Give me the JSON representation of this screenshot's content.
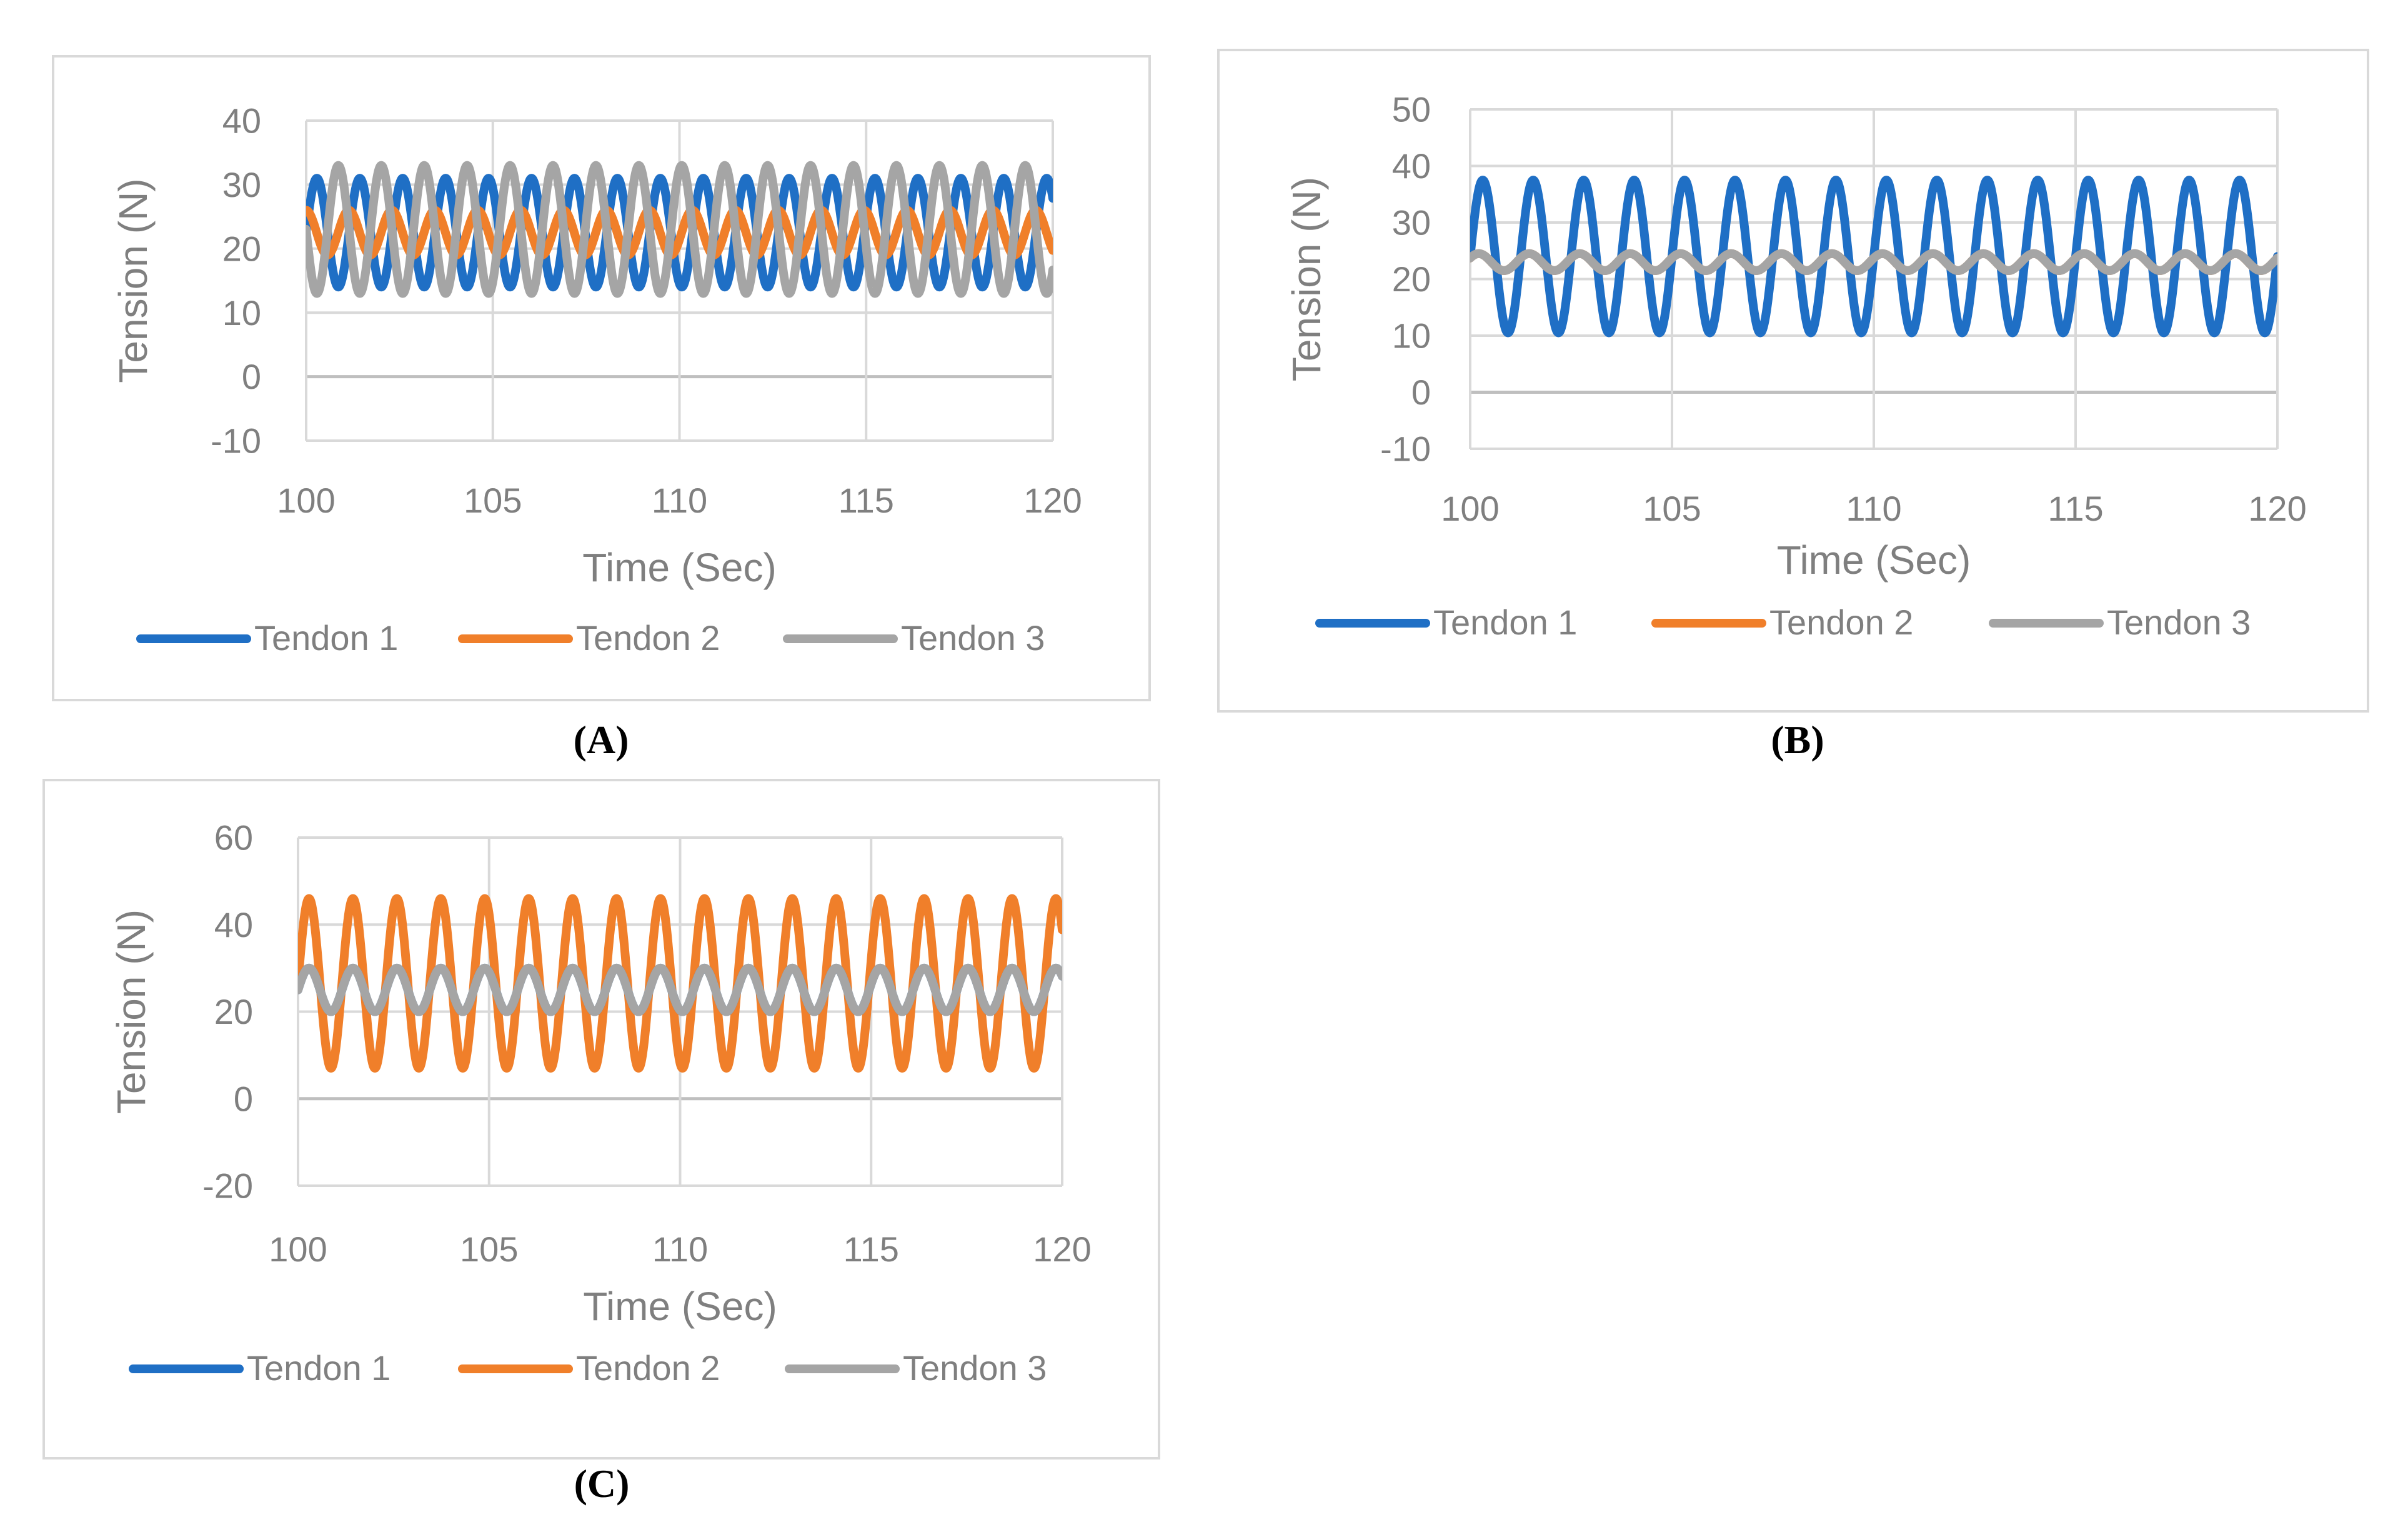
{
  "chart_data": [
    {
      "type": "line",
      "panel_label": "(A)",
      "xlabel": "Time (Sec)",
      "ylabel": "Tension (N)",
      "xlim": [
        100,
        120
      ],
      "ylim": [
        -10,
        40
      ],
      "xticks": [
        100,
        105,
        110,
        115,
        120
      ],
      "yticks": [
        -10,
        0,
        10,
        20,
        30,
        40
      ],
      "grid": true,
      "legend_position": "bottom",
      "period": 1.15,
      "series": [
        {
          "name": "Tendon 1",
          "color": "#1f6fc5",
          "mean": 22.5,
          "amplitude": 8.5,
          "phase": 0.0
        },
        {
          "name": "Tendon 2",
          "color": "#f07f2a",
          "mean": 22.5,
          "amplitude": 3.5,
          "phase": 1.6
        },
        {
          "name": "Tendon 3",
          "color": "#a5a5a5",
          "mean": 23.0,
          "amplitude": 10.0,
          "phase": 3.14
        }
      ]
    },
    {
      "type": "line",
      "panel_label": "(B)",
      "xlabel": "Time (Sec)",
      "ylabel": "Tension (N)",
      "xlim": [
        100,
        120
      ],
      "ylim": [
        -10,
        50
      ],
      "xticks": [
        100,
        105,
        110,
        115,
        120
      ],
      "yticks": [
        -10,
        0,
        10,
        20,
        30,
        40,
        50
      ],
      "grid": true,
      "legend_position": "bottom",
      "period": 1.25,
      "series": [
        {
          "name": "Tendon 1",
          "color": "#1f6fc5",
          "mean": 24.0,
          "amplitude": 13.5,
          "phase": 0.0
        },
        {
          "name": "Tendon 2",
          "color": "#f07f2a",
          "mean": 23.0,
          "amplitude": 1.5,
          "phase": 0.5
        },
        {
          "name": "Tendon 3",
          "color": "#a5a5a5",
          "mean": 23.0,
          "amplitude": 1.5,
          "phase": 0.5
        }
      ]
    },
    {
      "type": "line",
      "panel_label": "(C)",
      "xlabel": "Time (Sec)",
      "ylabel": "Tension (N)",
      "xlim": [
        100,
        120
      ],
      "ylim": [
        -20,
        60
      ],
      "xticks": [
        100,
        105,
        110,
        115,
        120
      ],
      "yticks": [
        -20,
        0,
        20,
        40,
        60
      ],
      "grid": true,
      "legend_position": "bottom",
      "period": 1.15,
      "series": [
        {
          "name": "Tendon 1",
          "color": "#1f6fc5",
          "mean": 25.0,
          "amplitude": 5.0,
          "phase": 0.0
        },
        {
          "name": "Tendon 2",
          "color": "#f07f2a",
          "mean": 26.5,
          "amplitude": 19.5,
          "phase": 0.0
        },
        {
          "name": "Tendon 3",
          "color": "#a5a5a5",
          "mean": 25.0,
          "amplitude": 5.0,
          "phase": 0.0
        }
      ]
    }
  ]
}
